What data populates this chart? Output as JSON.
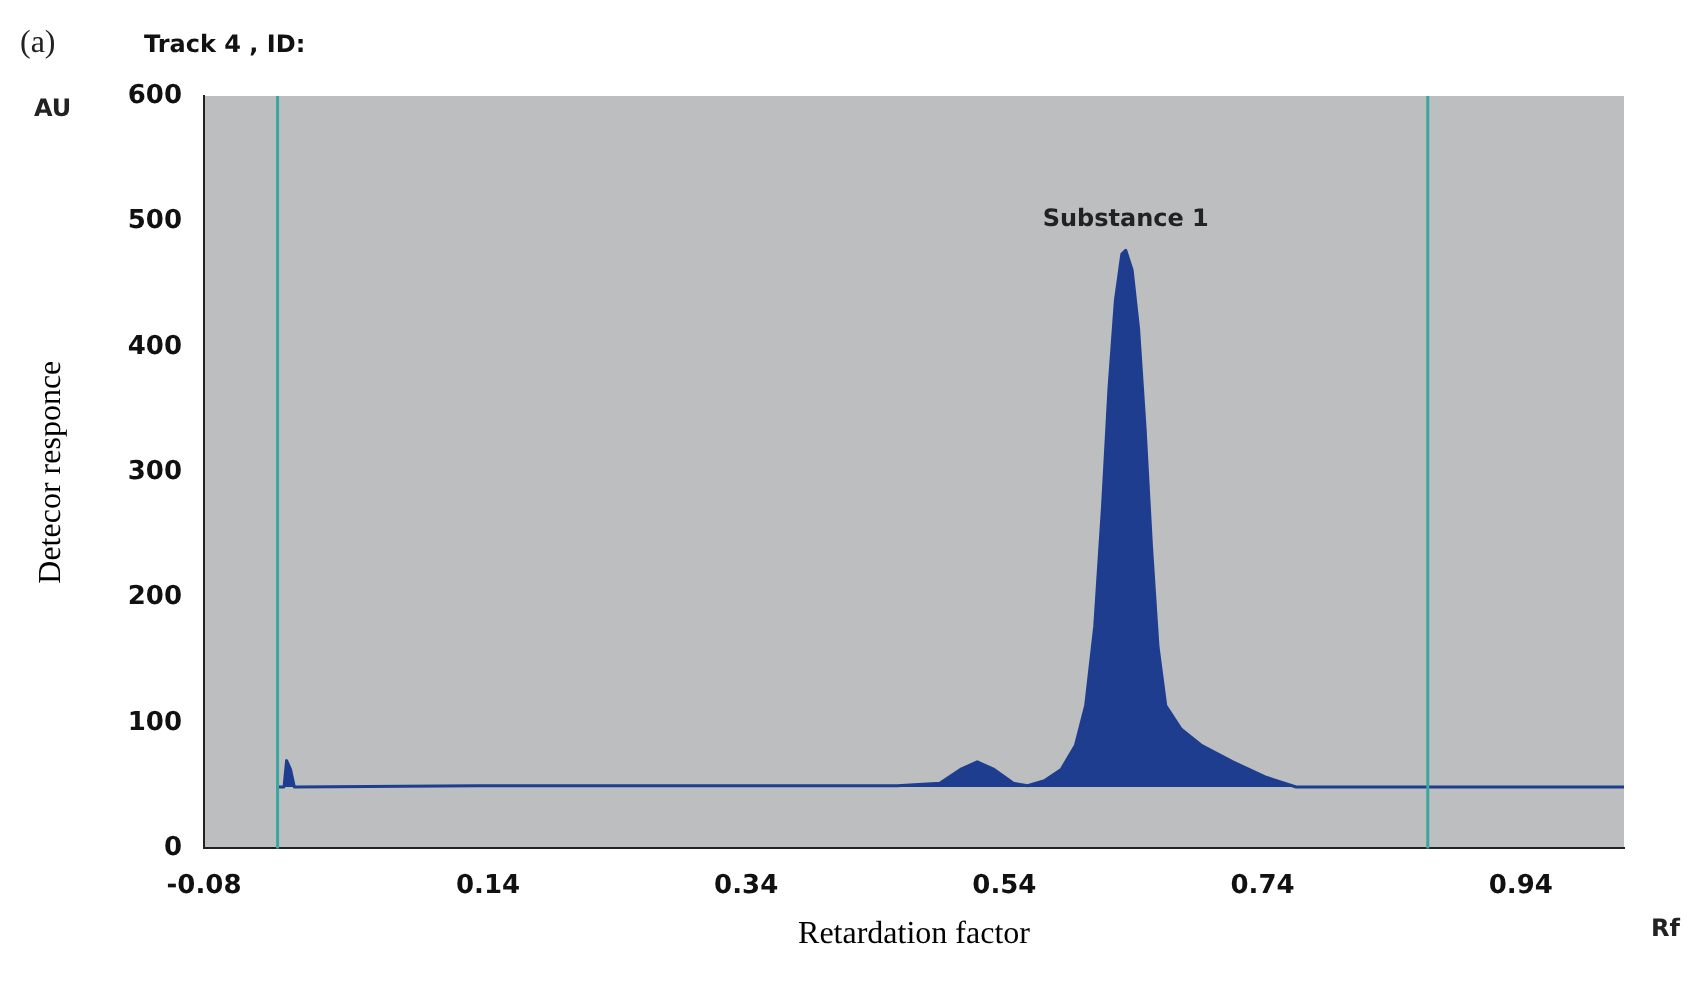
{
  "chart_data": {
    "type": "area",
    "title": "Track 4 , ID:",
    "xlabel": "Retardation factor",
    "ylabel": "Detecor responce",
    "annotations": [
      "(a)",
      "AU",
      "Rf",
      {
        "text": "Substance 1",
        "x": 0.634,
        "y": 477
      }
    ],
    "x": [
      -0.023,
      -0.018,
      -0.016,
      -0.013,
      -0.01,
      0.132,
      0.294,
      0.457,
      0.49,
      0.506,
      0.519,
      0.532,
      0.547,
      0.558,
      0.571,
      0.584,
      0.595,
      0.603,
      0.61,
      0.616,
      0.621,
      0.626,
      0.631,
      0.634,
      0.639,
      0.644,
      0.649,
      0.654,
      0.659,
      0.665,
      0.677,
      0.693,
      0.717,
      0.742,
      0.766,
      0.868,
      1.02
    ],
    "series": [
      {
        "color": "#1f3d8f",
        "values": [
          49,
          49,
          70,
          63,
          49,
          50,
          50,
          50,
          52,
          63,
          69,
          63,
          52,
          50,
          54,
          63,
          82,
          114,
          177,
          272,
          366,
          437,
          474,
          477,
          461,
          414,
          335,
          240,
          161,
          114,
          95,
          82,
          69,
          57,
          49,
          49,
          49
        ]
      }
    ],
    "xlim": [
      -0.08,
      1.02
    ],
    "xticks": [
      -0.08,
      0.14,
      0.34,
      0.54,
      0.74,
      0.94
    ],
    "ylim": [
      0,
      600
    ],
    "yticks": [
      0,
      100,
      200,
      300,
      400,
      500,
      600
    ],
    "ref_lines": [
      {
        "axis": "x",
        "value": -0.023,
        "color": "#3aa6a0"
      },
      {
        "axis": "x",
        "value": 0.868,
        "color": "#3aa6a0"
      }
    ],
    "grid": false,
    "legend": false,
    "marker": "none",
    "line_style": "solid"
  }
}
